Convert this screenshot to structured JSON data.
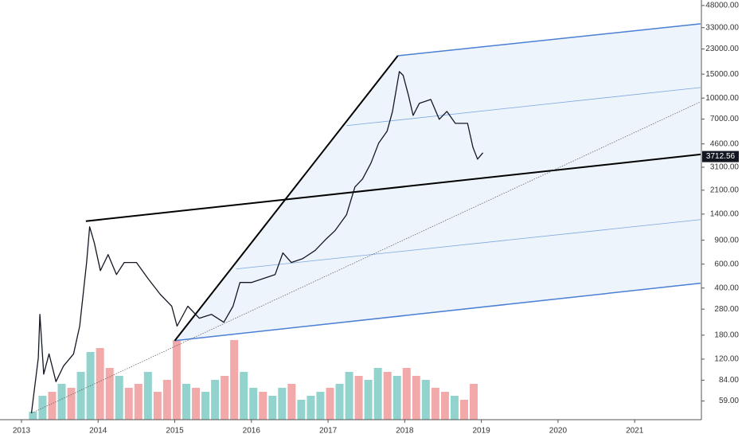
{
  "chart_data": {
    "type": "line",
    "log_scale": true,
    "xlim": [
      2012.72,
      2021.86
    ],
    "ylim": [
      43,
      52700
    ],
    "xticks": [
      2013,
      2014,
      2015,
      2016,
      2017,
      2018,
      2019,
      2020,
      2021
    ],
    "yticks": [
      {
        "value": 48000,
        "label": "48000.00"
      },
      {
        "value": 33000,
        "label": "33000.00"
      },
      {
        "value": 23000,
        "label": "23000.00"
      },
      {
        "value": 15000,
        "label": "15000.00"
      },
      {
        "value": 10000,
        "label": "10000.00"
      },
      {
        "value": 7000,
        "label": "7000.00"
      },
      {
        "value": 4600,
        "label": "4600.00"
      },
      {
        "value": 3100,
        "label": "3100.00"
      },
      {
        "value": 2100,
        "label": "2100.00"
      },
      {
        "value": 1400,
        "label": "1400.00"
      },
      {
        "value": 900,
        "label": "900.00"
      },
      {
        "value": 600,
        "label": "600.00"
      },
      {
        "value": 400,
        "label": "400.00"
      },
      {
        "value": 280,
        "label": "280.00"
      },
      {
        "value": 180,
        "label": "180.00"
      },
      {
        "value": 120,
        "label": "120.00"
      },
      {
        "value": 84,
        "label": "84.00"
      },
      {
        "value": 59,
        "label": "59.00"
      }
    ],
    "last_price": 3712.56,
    "price": {
      "color": "#131722",
      "x": [
        2013.13,
        2013.22,
        2013.24,
        2013.29,
        2013.36,
        2013.45,
        2013.55,
        2013.68,
        2013.76,
        2013.85,
        2013.89,
        2013.95,
        2014.03,
        2014.13,
        2014.24,
        2014.34,
        2014.5,
        2014.65,
        2014.81,
        2014.96,
        2015.03,
        2015.17,
        2015.32,
        2015.48,
        2015.64,
        2015.76,
        2015.85,
        2016.0,
        2016.16,
        2016.31,
        2016.41,
        2016.52,
        2016.67,
        2016.83,
        2016.98,
        2017.09,
        2017.24,
        2017.35,
        2017.45,
        2017.56,
        2017.66,
        2017.77,
        2017.84,
        2017.93,
        2017.98,
        2018.05,
        2018.11,
        2018.19,
        2018.34,
        2018.45,
        2018.55,
        2018.66,
        2018.82,
        2018.89,
        2018.95,
        2019.02
      ],
      "values": [
        48,
        122,
        256,
        93,
        131,
        82,
        107,
        131,
        210,
        617,
        1130,
        863,
        538,
        705,
        503,
        617,
        617,
        471,
        360,
        294,
        210,
        294,
        240,
        256,
        224,
        294,
        440,
        440,
        471,
        503,
        725,
        617,
        659,
        755,
        925,
        1057,
        1383,
        2218,
        2541,
        3327,
        4660,
        5703,
        7980,
        15670,
        14700,
        10400,
        7460,
        9140,
        9770,
        6980,
        7980,
        6520,
        6520,
        4350,
        3556,
        3963
      ]
    },
    "volume": {
      "x": [
        2013.15,
        2013.275,
        2013.4,
        2013.525,
        2013.65,
        2013.775,
        2013.9,
        2014.025,
        2014.15,
        2014.275,
        2014.4,
        2014.525,
        2014.65,
        2014.775,
        2014.9,
        2015.025,
        2015.15,
        2015.275,
        2015.4,
        2015.525,
        2015.65,
        2015.775,
        2015.9,
        2016.025,
        2016.15,
        2016.275,
        2016.4,
        2016.525,
        2016.65,
        2016.775,
        2016.9,
        2017.025,
        2017.15,
        2017.275,
        2017.4,
        2017.525,
        2017.65,
        2017.775,
        2017.9,
        2018.025,
        2018.15,
        2018.275,
        2018.4,
        2018.525,
        2018.65,
        2018.775,
        2018.9
      ],
      "values": [
        10,
        30,
        35,
        45,
        40,
        60,
        85,
        90,
        65,
        55,
        40,
        45,
        60,
        35,
        50,
        100,
        45,
        40,
        35,
        50,
        55,
        100,
        60,
        40,
        35,
        30,
        40,
        45,
        25,
        30,
        35,
        40,
        45,
        60,
        55,
        50,
        65,
        60,
        55,
        65,
        55,
        50,
        40,
        35,
        30,
        25,
        45
      ],
      "colors": [
        "#80cbc4",
        "#80cbc4",
        "#ef9a9a",
        "#80cbc4",
        "#ef9a9a",
        "#80cbc4",
        "#80cbc4",
        "#ef9a9a",
        "#ef9a9a",
        "#80cbc4",
        "#ef9a9a",
        "#ef9a9a",
        "#80cbc4",
        "#ef9a9a",
        "#ef9a9a",
        "#ef9a9a",
        "#80cbc4",
        "#ef9a9a",
        "#80cbc4",
        "#80cbc4",
        "#ef9a9a",
        "#ef9a9a",
        "#80cbc4",
        "#80cbc4",
        "#ef9a9a",
        "#80cbc4",
        "#80cbc4",
        "#ef9a9a",
        "#80cbc4",
        "#80cbc4",
        "#80cbc4",
        "#ef9a9a",
        "#80cbc4",
        "#80cbc4",
        "#ef9a9a",
        "#80cbc4",
        "#80cbc4",
        "#ef9a9a",
        "#80cbc4",
        "#ef9a9a",
        "#ef9a9a",
        "#80cbc4",
        "#ef9a9a",
        "#ef9a9a",
        "#80cbc4",
        "#ef9a9a",
        "#ef9a9a"
      ]
    },
    "trend_lines": [
      {
        "x": [
          2017.91,
          2021.86
        ],
        "y": [
          20500,
          35200
        ],
        "color": "#4a7fd4",
        "width": 1.5,
        "dash": "none"
      },
      {
        "x": [
          2015.0,
          2021.86
        ],
        "y": [
          164,
          434
        ],
        "color": "#4a7fd4",
        "width": 1.5,
        "dash": "none"
      },
      {
        "x": [
          2017.24,
          2021.86
        ],
        "y": [
          6270,
          11970
        ],
        "color": "#7aa7e0",
        "width": 0.8,
        "dash": "none"
      },
      {
        "x": [
          2015.8,
          2021.86
        ],
        "y": [
          553,
          1276
        ],
        "color": "#7aa7e0",
        "width": 0.8,
        "dash": "none"
      },
      {
        "x": [
          2015.0,
          2017.91
        ],
        "y": [
          164,
          20500
        ],
        "color": "#000000",
        "width": 2,
        "dash": "none"
      },
      {
        "x": [
          2013.84,
          2021.86
        ],
        "y": [
          1242,
          3850
        ],
        "color": "#000000",
        "width": 2,
        "dash": "none"
      },
      {
        "x": [
          2013.13,
          2021.86
        ],
        "y": [
          48,
          9400
        ],
        "color": "#555555",
        "width": 0.7,
        "dash": "1.5 1.5"
      }
    ],
    "fill_color": "#eef4fc"
  }
}
